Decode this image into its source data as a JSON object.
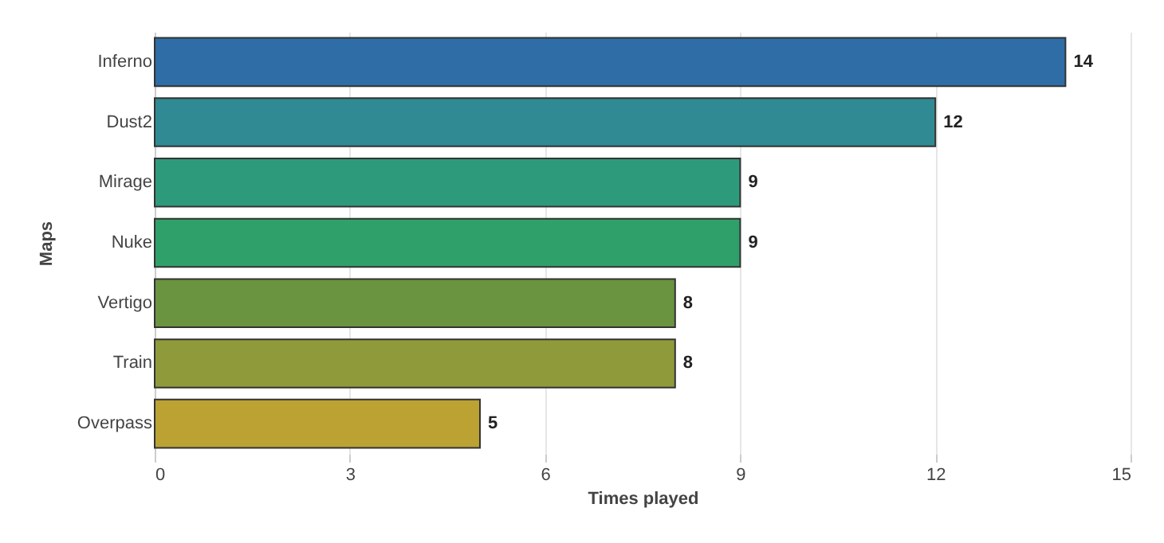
{
  "chart_data": {
    "type": "bar",
    "orientation": "horizontal",
    "xlabel": "Times played",
    "ylabel": "Maps",
    "categories": [
      "Inferno",
      "Dust2",
      "Mirage",
      "Nuke",
      "Vertigo",
      "Train",
      "Overpass"
    ],
    "values": [
      14,
      12,
      9,
      9,
      8,
      8,
      5
    ],
    "colors": [
      "#2e6da6",
      "#2f8a93",
      "#2e9a7c",
      "#30a06a",
      "#6a9440",
      "#8f9a3a",
      "#bba232"
    ],
    "xlim": [
      0,
      15
    ],
    "xticks": [
      0,
      3,
      6,
      9,
      12,
      15
    ],
    "grid": "x",
    "data_labels": true
  }
}
